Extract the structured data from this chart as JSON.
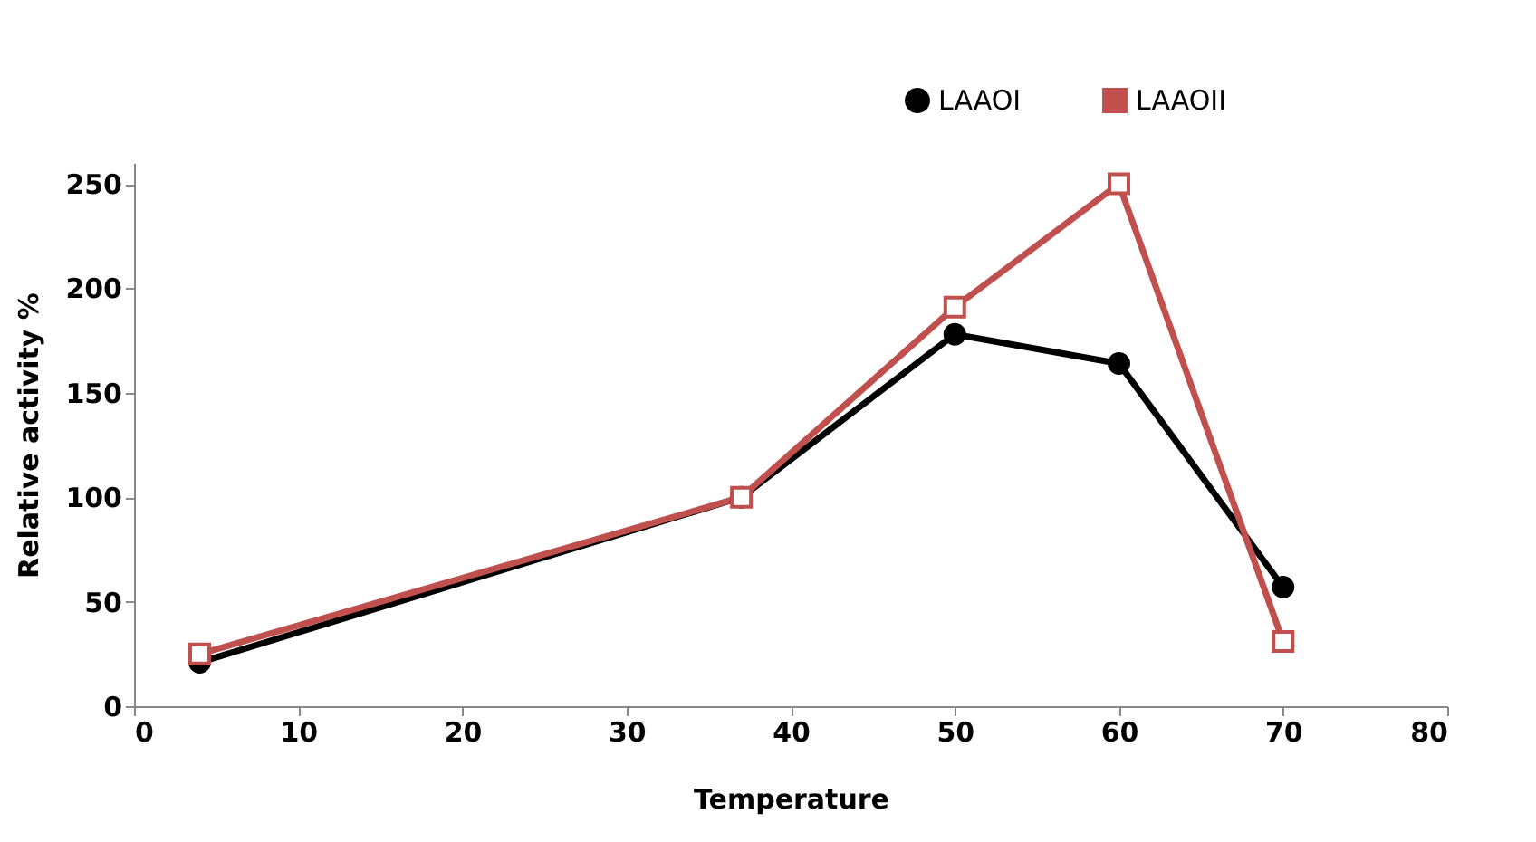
{
  "chart_data": {
    "type": "line",
    "xlabel": "Temperature",
    "ylabel": "Relative activity %",
    "xlim": [
      0,
      80
    ],
    "xticks": [
      0,
      10,
      20,
      30,
      40,
      50,
      60,
      70,
      80
    ],
    "ylim": [
      0,
      260
    ],
    "yticks": [
      0,
      50,
      100,
      150,
      200,
      250
    ],
    "grid": false,
    "legend": "top right",
    "line_style": "solid",
    "series": [
      {
        "name": "LAAOI",
        "color": "#000000",
        "marker": "circle",
        "x": [
          4,
          37,
          50,
          60,
          70
        ],
        "values": [
          21,
          100,
          178,
          164,
          57
        ]
      },
      {
        "name": "LAAOII",
        "color": "#c0504d",
        "marker": "square",
        "x": [
          4,
          37,
          50,
          60,
          70
        ],
        "values": [
          25,
          100,
          191,
          250,
          31
        ]
      }
    ]
  }
}
